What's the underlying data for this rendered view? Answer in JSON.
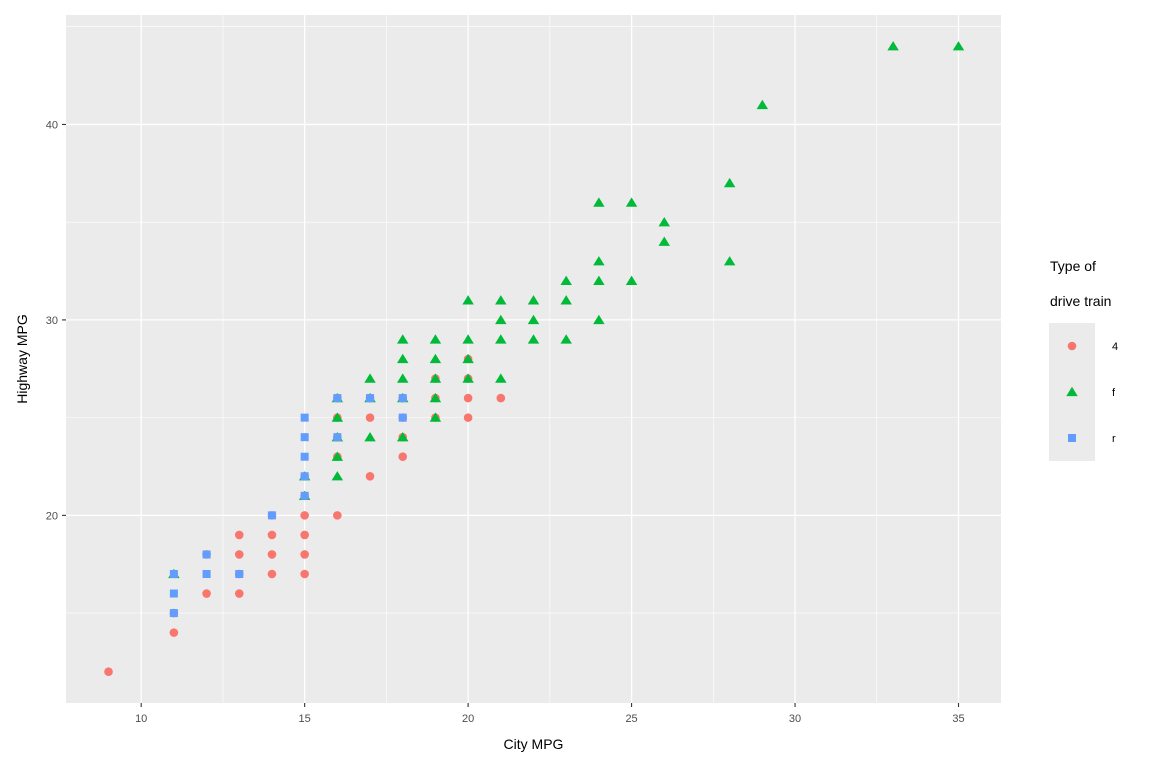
{
  "chart_data": {
    "type": "scatter",
    "title": "",
    "xlabel": "City MPG",
    "ylabel": "Highway MPG",
    "xlim": [
      7.7,
      36.3
    ],
    "ylim": [
      10.4,
      45.6
    ],
    "x_ticks": [
      10,
      15,
      20,
      25,
      30,
      35
    ],
    "y_ticks": [
      20,
      30,
      40
    ],
    "grid": true,
    "legend": {
      "title_lines": [
        "Type of",
        "drive train"
      ],
      "position": "right"
    },
    "series": [
      {
        "name": "4",
        "shape": "circle",
        "color": "#F8766D",
        "points": [
          [
            9,
            12
          ],
          [
            11,
            14
          ],
          [
            11,
            15
          ],
          [
            12,
            16
          ],
          [
            12,
            18
          ],
          [
            13,
            16
          ],
          [
            13,
            17
          ],
          [
            13,
            18
          ],
          [
            13,
            19
          ],
          [
            14,
            17
          ],
          [
            14,
            18
          ],
          [
            14,
            19
          ],
          [
            14,
            20
          ],
          [
            15,
            17
          ],
          [
            15,
            18
          ],
          [
            15,
            19
          ],
          [
            15,
            20
          ],
          [
            15,
            21
          ],
          [
            15,
            22
          ],
          [
            16,
            20
          ],
          [
            16,
            23
          ],
          [
            16,
            24
          ],
          [
            16,
            25
          ],
          [
            16,
            26
          ],
          [
            17,
            22
          ],
          [
            17,
            25
          ],
          [
            17,
            26
          ],
          [
            18,
            23
          ],
          [
            18,
            24
          ],
          [
            18,
            25
          ],
          [
            18,
            26
          ],
          [
            19,
            25
          ],
          [
            19,
            26
          ],
          [
            19,
            27
          ],
          [
            20,
            25
          ],
          [
            20,
            26
          ],
          [
            20,
            27
          ],
          [
            20,
            28
          ],
          [
            21,
            26
          ]
        ]
      },
      {
        "name": "f",
        "shape": "triangle",
        "color": "#00BA38",
        "points": [
          [
            11,
            17
          ],
          [
            15,
            21
          ],
          [
            15,
            22
          ],
          [
            16,
            22
          ],
          [
            16,
            23
          ],
          [
            16,
            24
          ],
          [
            16,
            25
          ],
          [
            16,
            26
          ],
          [
            17,
            24
          ],
          [
            17,
            26
          ],
          [
            17,
            27
          ],
          [
            18,
            24
          ],
          [
            18,
            26
          ],
          [
            18,
            27
          ],
          [
            18,
            28
          ],
          [
            18,
            29
          ],
          [
            19,
            25
          ],
          [
            19,
            26
          ],
          [
            19,
            27
          ],
          [
            19,
            28
          ],
          [
            19,
            29
          ],
          [
            20,
            27
          ],
          [
            20,
            28
          ],
          [
            20,
            29
          ],
          [
            20,
            31
          ],
          [
            21,
            27
          ],
          [
            21,
            29
          ],
          [
            21,
            30
          ],
          [
            21,
            31
          ],
          [
            22,
            29
          ],
          [
            22,
            30
          ],
          [
            22,
            31
          ],
          [
            23,
            29
          ],
          [
            23,
            31
          ],
          [
            23,
            32
          ],
          [
            24,
            30
          ],
          [
            24,
            32
          ],
          [
            24,
            33
          ],
          [
            24,
            36
          ],
          [
            25,
            32
          ],
          [
            25,
            36
          ],
          [
            26,
            34
          ],
          [
            26,
            35
          ],
          [
            28,
            33
          ],
          [
            28,
            37
          ],
          [
            29,
            41
          ],
          [
            33,
            44
          ],
          [
            35,
            44
          ]
        ]
      },
      {
        "name": "r",
        "shape": "square",
        "color": "#619CFF",
        "points": [
          [
            11,
            15
          ],
          [
            11,
            16
          ],
          [
            11,
            17
          ],
          [
            12,
            17
          ],
          [
            12,
            18
          ],
          [
            13,
            17
          ],
          [
            14,
            20
          ],
          [
            15,
            21
          ],
          [
            15,
            22
          ],
          [
            15,
            23
          ],
          [
            15,
            24
          ],
          [
            15,
            25
          ],
          [
            16,
            24
          ],
          [
            16,
            26
          ],
          [
            17,
            26
          ],
          [
            18,
            25
          ],
          [
            18,
            26
          ]
        ]
      }
    ]
  }
}
